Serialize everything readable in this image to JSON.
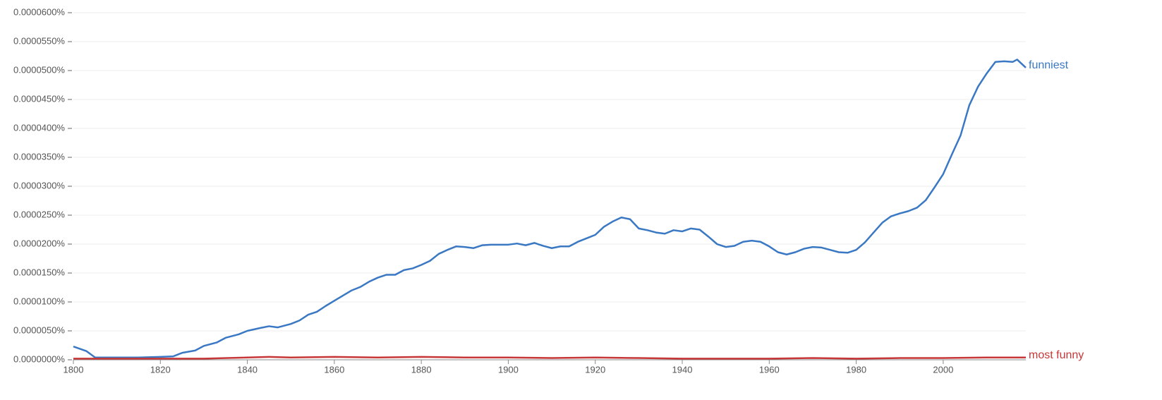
{
  "chart_data": {
    "type": "line",
    "xlim": [
      1800,
      2019
    ],
    "xticks": [
      1800,
      1820,
      1840,
      1860,
      1880,
      1900,
      1920,
      1940,
      1960,
      1980,
      2000
    ],
    "ylim": [
      0,
      6e-05
    ],
    "yticks": [
      {
        "value": 0,
        "label": "0.0000000%"
      },
      {
        "value": 5e-06,
        "label": "0.0000050%"
      },
      {
        "value": 1e-05,
        "label": "0.0000100%"
      },
      {
        "value": 1.5e-05,
        "label": "0.0000150%"
      },
      {
        "value": 2e-05,
        "label": "0.0000200%"
      },
      {
        "value": 2.5e-05,
        "label": "0.0000250%"
      },
      {
        "value": 3e-05,
        "label": "0.0000300%"
      },
      {
        "value": 3.5e-05,
        "label": "0.0000350%"
      },
      {
        "value": 4e-05,
        "label": "0.0000400%"
      },
      {
        "value": 4.5e-05,
        "label": "0.0000450%"
      },
      {
        "value": 5e-05,
        "label": "0.0000500%"
      },
      {
        "value": 5.5e-05,
        "label": "0.0000550%"
      },
      {
        "value": 6e-05,
        "label": "0.0000600%"
      }
    ],
    "grid": true,
    "series": [
      {
        "name": "funniest",
        "color": "#3a78c4",
        "x": [
          1800,
          1803,
          1805,
          1810,
          1815,
          1820,
          1823,
          1825,
          1828,
          1830,
          1833,
          1835,
          1838,
          1840,
          1843,
          1845,
          1847,
          1850,
          1852,
          1854,
          1856,
          1858,
          1860,
          1862,
          1864,
          1866,
          1868,
          1870,
          1872,
          1874,
          1876,
          1878,
          1880,
          1882,
          1884,
          1886,
          1888,
          1890,
          1892,
          1894,
          1896,
          1898,
          1900,
          1902,
          1904,
          1906,
          1908,
          1910,
          1912,
          1914,
          1916,
          1918,
          1920,
          1922,
          1924,
          1926,
          1928,
          1930,
          1932,
          1934,
          1936,
          1938,
          1940,
          1942,
          1944,
          1946,
          1948,
          1950,
          1952,
          1954,
          1956,
          1958,
          1960,
          1962,
          1964,
          1966,
          1968,
          1970,
          1972,
          1974,
          1976,
          1978,
          1980,
          1982,
          1984,
          1986,
          1988,
          1990,
          1992,
          1994,
          1996,
          1998,
          2000,
          2002,
          2004,
          2006,
          2008,
          2010,
          2012,
          2014,
          2016,
          2017,
          2019
        ],
        "values": [
          2.3e-06,
          1.5e-06,
          4e-07,
          4e-07,
          4e-07,
          5e-07,
          6e-07,
          1.2e-06,
          1.6e-06,
          2.4e-06,
          3e-06,
          3.8e-06,
          4.4e-06,
          5e-06,
          5.5e-06,
          5.8e-06,
          5.6e-06,
          6.2e-06,
          6.8e-06,
          7.8e-06,
          8.3e-06,
          9.3e-06,
          1.02e-05,
          1.11e-05,
          1.2e-05,
          1.26e-05,
          1.35e-05,
          1.42e-05,
          1.47e-05,
          1.47e-05,
          1.55e-05,
          1.58e-05,
          1.64e-05,
          1.71e-05,
          1.83e-05,
          1.9e-05,
          1.96e-05,
          1.95e-05,
          1.93e-05,
          1.98e-05,
          1.99e-05,
          1.99e-05,
          1.99e-05,
          2.01e-05,
          1.98e-05,
          2.02e-05,
          1.97e-05,
          1.93e-05,
          1.96e-05,
          1.96e-05,
          2.04e-05,
          2.1e-05,
          2.16e-05,
          2.3e-05,
          2.39e-05,
          2.46e-05,
          2.43e-05,
          2.27e-05,
          2.24e-05,
          2.2e-05,
          2.18e-05,
          2.24e-05,
          2.22e-05,
          2.27e-05,
          2.25e-05,
          2.13e-05,
          2e-05,
          1.95e-05,
          1.97e-05,
          2.04e-05,
          2.06e-05,
          2.04e-05,
          1.96e-05,
          1.86e-05,
          1.82e-05,
          1.86e-05,
          1.92e-05,
          1.95e-05,
          1.94e-05,
          1.9e-05,
          1.86e-05,
          1.85e-05,
          1.9e-05,
          2.03e-05,
          2.2e-05,
          2.37e-05,
          2.48e-05,
          2.53e-05,
          2.57e-05,
          2.63e-05,
          2.76e-05,
          2.98e-05,
          3.21e-05,
          3.55e-05,
          3.88e-05,
          4.4e-05,
          4.72e-05,
          4.95e-05,
          5.15e-05,
          5.16e-05,
          5.15e-05,
          5.19e-05,
          5.05e-05
        ]
      },
      {
        "name": "most funny",
        "color": "#c83737",
        "x": [
          1800,
          1810,
          1820,
          1830,
          1840,
          1845,
          1850,
          1860,
          1870,
          1880,
          1890,
          1900,
          1910,
          1920,
          1930,
          1940,
          1950,
          1960,
          1970,
          1980,
          1990,
          2000,
          2010,
          2019
        ],
        "values": [
          2e-07,
          2e-07,
          2e-07,
          2e-07,
          4e-07,
          5e-07,
          4e-07,
          5e-07,
          4e-07,
          5e-07,
          4e-07,
          4e-07,
          3e-07,
          4e-07,
          3e-07,
          2e-07,
          2e-07,
          2e-07,
          3e-07,
          2e-07,
          3e-07,
          3e-07,
          4e-07,
          4e-07
        ]
      }
    ]
  }
}
